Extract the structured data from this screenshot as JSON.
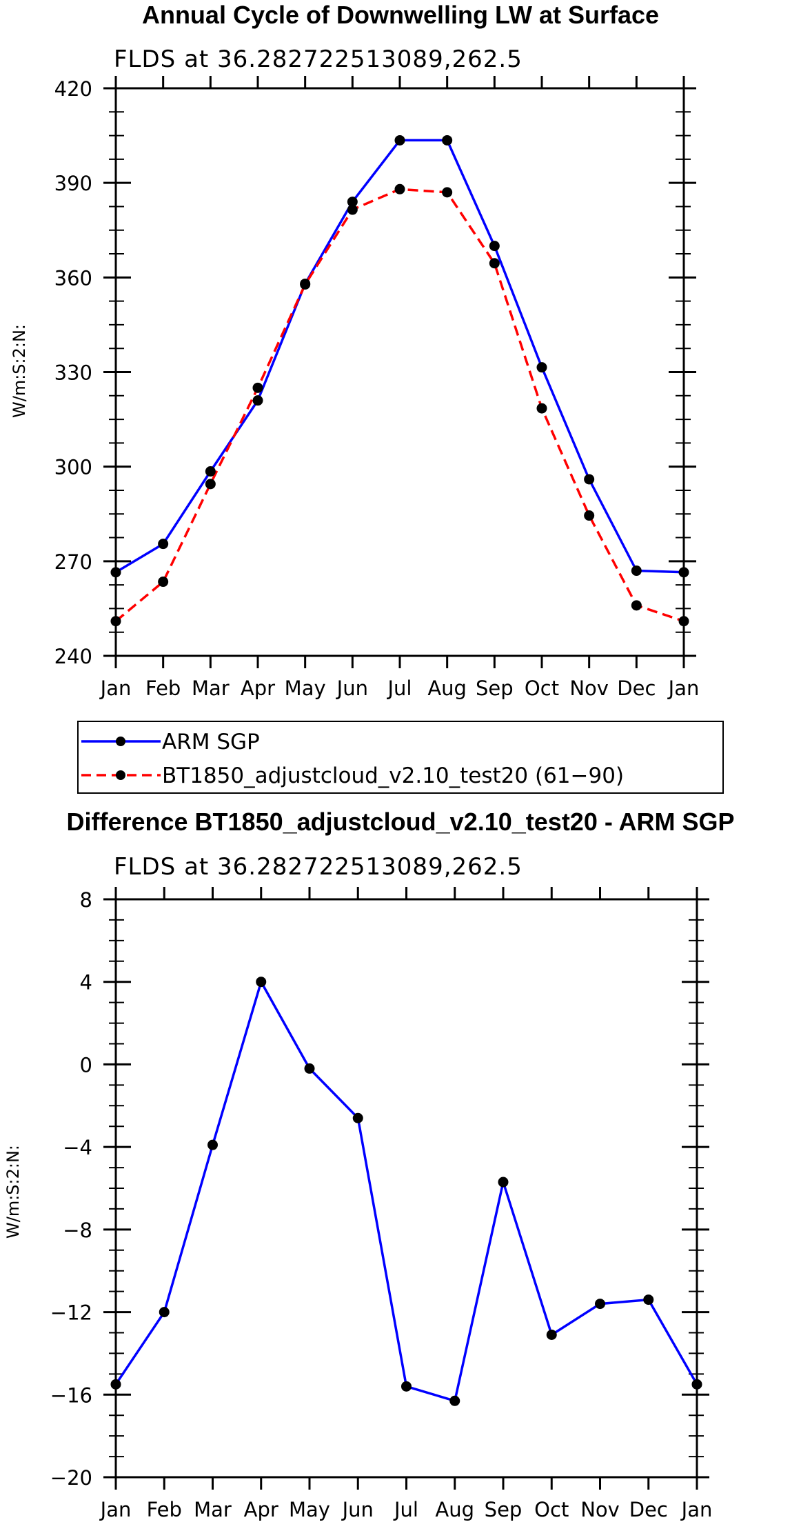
{
  "chart_data": [
    {
      "type": "line",
      "title": "Annual Cycle of Downwelling LW at Surface",
      "subtitle": "FLDS at 36.282722513089,262.5",
      "xlabel": "",
      "ylabel": "W/m:S:2:N:",
      "categories": [
        "Jan",
        "Feb",
        "Mar",
        "Apr",
        "May",
        "Jun",
        "Jul",
        "Aug",
        "Sep",
        "Oct",
        "Nov",
        "Dec",
        "Jan"
      ],
      "yticks": [
        "240",
        "270",
        "300",
        "330",
        "360",
        "390",
        "420"
      ],
      "ylim": [
        240,
        420
      ],
      "grid": false,
      "series": [
        {
          "name": "ARM SGP",
          "color": "#0000ff",
          "dash": "solid",
          "values": [
            266.5,
            275.5,
            298.5,
            321.0,
            358.0,
            384.0,
            403.5,
            403.5,
            370.0,
            331.5,
            296.0,
            267.0,
            266.5
          ]
        },
        {
          "name": "BT1850_adjustcloud_v2.10_test20 (61−90)",
          "color": "#ff0000",
          "dash": "dashed",
          "values": [
            251.0,
            263.5,
            294.5,
            325.0,
            357.8,
            381.5,
            388.0,
            387.0,
            364.5,
            318.5,
            284.5,
            256.0,
            251.0
          ]
        }
      ]
    },
    {
      "type": "line",
      "title": "Difference BT1850_adjustcloud_v2.10_test20 - ARM SGP",
      "subtitle": "FLDS at 36.282722513089,262.5",
      "xlabel": "",
      "ylabel": "W/m:S:2:N:",
      "categories": [
        "Jan",
        "Feb",
        "Mar",
        "Apr",
        "May",
        "Jun",
        "Jul",
        "Aug",
        "Sep",
        "Oct",
        "Nov",
        "Dec",
        "Jan"
      ],
      "yticks": [
        "−20",
        "−16",
        "−12",
        "−8",
        "−4",
        "0",
        "4",
        "8"
      ],
      "ylim": [
        -20,
        8
      ],
      "grid": false,
      "series": [
        {
          "name": "Difference",
          "color": "#0000ff",
          "dash": "solid",
          "values": [
            -15.5,
            -12.0,
            -3.9,
            4.0,
            -0.2,
            -2.6,
            -15.6,
            -16.3,
            -5.7,
            -13.1,
            -11.6,
            -11.4,
            -15.5
          ]
        }
      ]
    }
  ]
}
